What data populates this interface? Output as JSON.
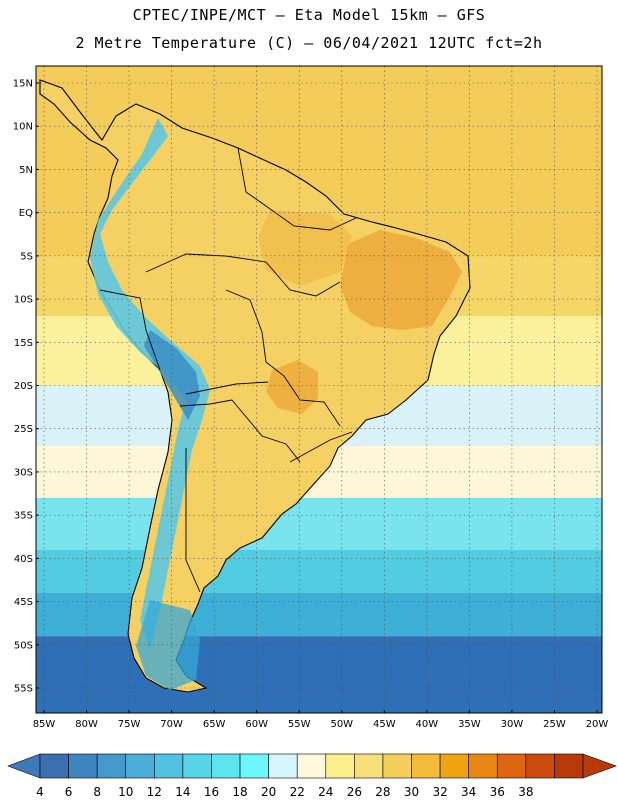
{
  "header": {
    "line1": "CPTEC/INPE/MCT —  Eta Model 15km — GFS",
    "line2": "2 Metre Temperature (C) — 06/04/2021 12UTC fct=2h"
  },
  "map": {
    "lat_labels": [
      "15N",
      "10N",
      "5N",
      "EQ",
      "5S",
      "10S",
      "15S",
      "20S",
      "25S",
      "30S",
      "35S",
      "40S",
      "45S",
      "50S",
      "55S"
    ],
    "lon_labels": [
      "85W",
      "80W",
      "75W",
      "70W",
      "65W",
      "60W",
      "55W",
      "50W",
      "45W",
      "40W",
      "35W",
      "30W",
      "25W",
      "20W"
    ],
    "lon_range": [
      -85,
      -20
    ],
    "lat_range": [
      15,
      -55
    ],
    "land_color": "#f5d063",
    "ocean_bands": [
      {
        "lat_from": 17,
        "lat_to": -5,
        "color": "#f3cc5a"
      },
      {
        "lat_from": -5,
        "lat_to": -12,
        "color": "#f5d768"
      },
      {
        "lat_from": -12,
        "lat_to": -20,
        "color": "#fbf09c"
      },
      {
        "lat_from": -20,
        "lat_to": -27,
        "color": "#d8f2f8"
      },
      {
        "lat_from": -27,
        "lat_to": -33,
        "color": "#fff6da"
      },
      {
        "lat_from": -33,
        "lat_to": -39,
        "color": "#79e3ee"
      },
      {
        "lat_from": -39,
        "lat_to": -44,
        "color": "#52cce0"
      },
      {
        "lat_from": -44,
        "lat_to": -49,
        "color": "#3eb0d8"
      },
      {
        "lat_from": -49,
        "lat_to": -58,
        "color": "#2f6fb5"
      }
    ]
  },
  "colorbar": {
    "labels": [
      "4",
      "6",
      "8",
      "10",
      "12",
      "14",
      "16",
      "18",
      "20",
      "22",
      "24",
      "26",
      "28",
      "30",
      "32",
      "34",
      "36",
      "38"
    ],
    "colors": [
      "#3b6fb0",
      "#3f86c0",
      "#4599cc",
      "#4aaed8",
      "#52c0e0",
      "#57d5e6",
      "#5de4ef",
      "#6ef7fb",
      "#d5f6fb",
      "#fff8dc",
      "#fdf08c",
      "#f7e07a",
      "#f4cf5c",
      "#f2bb3a",
      "#efa313",
      "#ea8613",
      "#de6512",
      "#cc4b0e",
      "#b83a0a"
    ],
    "left_arrow_color": "#3f7ab8",
    "right_arrow_color": "#b83a0a"
  }
}
